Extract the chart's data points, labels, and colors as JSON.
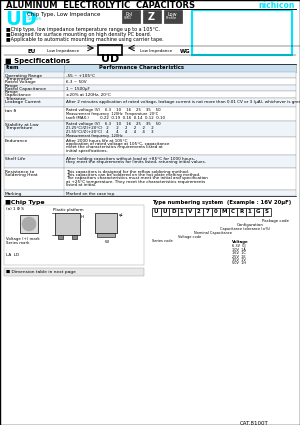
{
  "title": "ALUMINUM  ELECTROLYTIC  CAPACITORS",
  "brand": "nichicon",
  "series_name": "UD",
  "series_subtitle": "Chip Type, Low Impedance",
  "series_label": "Series",
  "bullet_points": [
    "Chip type, low impedance temperature range up to a 105°C.",
    "Designed for surface mounting on high density PC board.",
    "Applicable to automatic mounting machine using carrier tape."
  ],
  "spec_title": "Specifications",
  "spec_rows": [
    [
      "Operating Temperature Range",
      "-55 ~ +105°C",
      6.5
    ],
    [
      "Rated Voltage Range",
      "6.3 ~ 50V",
      6.5
    ],
    [
      "Rated Capacitance Range",
      "1 ~ 1500μF",
      6.5
    ],
    [
      "Capacitance Tolerance",
      "±20% at 120Hz, 20°C",
      6.5
    ],
    [
      "Leakage Current",
      "After 2 minutes application of rated voltage, leakage current is not more than 0.01 CV or 3 (μA), whichever is greater.",
      9
    ],
    [
      "tan δ",
      "",
      14
    ],
    [
      "Stability at Low Temperature",
      "",
      16
    ],
    [
      "Endurance",
      "After 2000 hours life at 105°C\napplication of rated voltage at 105°C, capacitance\nmeet the characteristics requirements listed at\ninitial specifications.",
      18
    ],
    [
      "Shelf Life",
      "After holding capacitors without load at +85°C for 1000 hours,\nthey meet the requirements for limits listed, returning initial values.",
      13
    ],
    [
      "Resistance to Soldering Heat",
      "This capacitors is designed for the reflow soldering method.\nThis capacitors can be soldered on the hot plate melting method.\nThe capacitors characteristics must meet the initial and specification\nat +25°C temperature. They meet the characteristics requirements\nlisted at initial.",
      22
    ],
    [
      "Marking",
      "Marked on the case top.",
      6.5
    ]
  ],
  "chip_type_title": "■Chip Type",
  "type_numbering_title": "Type numbering system  (Example : 16V 20μF)",
  "cat_number": "CAT.8100T",
  "bg_color": "#ffffff",
  "header_bg": "#c8dff0",
  "row_alt1": "#eef4f9",
  "row_alt2": "#ffffff",
  "cyan_color": "#00e5ff",
  "table_border": "#999999"
}
